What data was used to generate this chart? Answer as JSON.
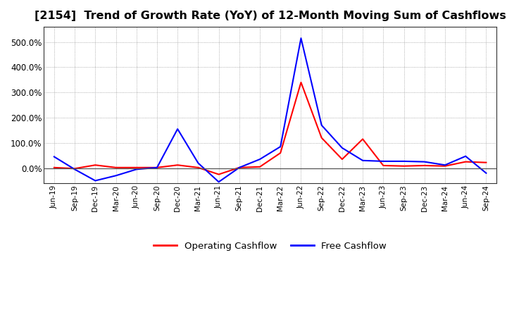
{
  "title": "[2154]  Trend of Growth Rate (YoY) of 12-Month Moving Sum of Cashflows",
  "title_fontsize": 11.5,
  "background_color": "#ffffff",
  "plot_bg_color": "#ffffff",
  "grid_color": "#999999",
  "ylim": [
    -60,
    560
  ],
  "yticks": [
    0,
    100,
    200,
    300,
    400,
    500
  ],
  "ytick_labels": [
    "0.0%",
    "100.0%",
    "200.0%",
    "300.0%",
    "400.0%",
    "500.0%"
  ],
  "legend_labels": [
    "Operating Cashflow",
    "Free Cashflow"
  ],
  "legend_colors": [
    "#ff0000",
    "#0000ff"
  ],
  "operating_cashflow": [
    2,
    -2,
    12,
    2,
    2,
    2,
    12,
    2,
    -25,
    2,
    5,
    60,
    340,
    120,
    35,
    115,
    10,
    8,
    10,
    8,
    25,
    22
  ],
  "free_cashflow": [
    45,
    -5,
    -50,
    -30,
    -5,
    2,
    155,
    20,
    -55,
    2,
    35,
    85,
    515,
    170,
    80,
    30,
    27,
    27,
    25,
    12,
    47,
    -20
  ],
  "xtick_labels": [
    "Jun-19",
    "Sep-19",
    "Dec-19",
    "Mar-20",
    "Jun-20",
    "Sep-20",
    "Dec-20",
    "Mar-21",
    "Jun-21",
    "Sep-21",
    "Dec-21",
    "Mar-22",
    "Jun-22",
    "Sep-22",
    "Dec-22",
    "Mar-23",
    "Jun-23",
    "Sep-23",
    "Dec-23",
    "Mar-24",
    "Jun-24",
    "Sep-24"
  ]
}
